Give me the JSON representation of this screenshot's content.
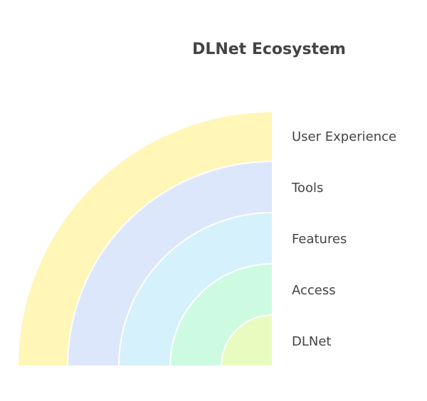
{
  "title": "DLNet Ecosystem",
  "layers": [
    {
      "label": "DLNet",
      "color": "#e9fcc0"
    },
    {
      "label": "Access",
      "color": "#cdfbe1"
    },
    {
      "label": "Features",
      "color": "#d4f1fc"
    },
    {
      "label": "Tools",
      "color": "#dde7fc"
    },
    {
      "label": "User Experience",
      "color": "#fff6b8"
    }
  ]
}
